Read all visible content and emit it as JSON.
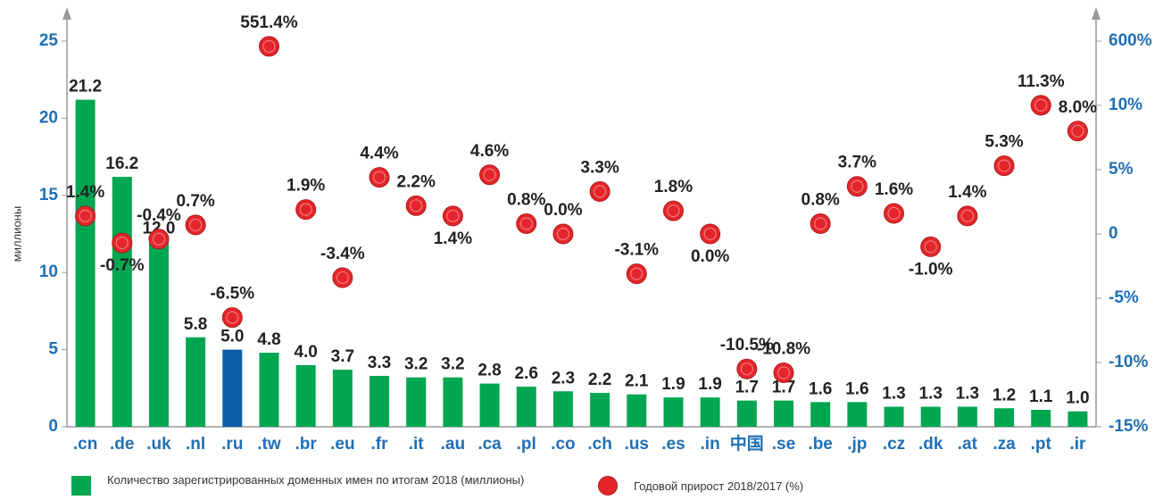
{
  "chart_data": {
    "type": "bar_dot",
    "y_label": "миллионы",
    "categories": [
      ".cn",
      ".de",
      ".uk",
      ".nl",
      ".ru",
      ".tw",
      ".br",
      ".eu",
      ".fr",
      ".it",
      ".au",
      ".ca",
      ".pl",
      ".co",
      ".ch",
      ".us",
      ".es",
      ".in",
      "中国",
      ".se",
      ".be",
      ".jp",
      ".cz",
      ".dk",
      ".at",
      ".za",
      ".pt",
      ".ir"
    ],
    "series": [
      {
        "name": "Количество зарегистрированных доменных имен по итогам 2018 (миллионы)",
        "color": "#00a650",
        "colors": [
          "#00a650",
          "#00a650",
          "#00a650",
          "#00a650",
          "#0b5fa5",
          "#00a650",
          "#00a650",
          "#00a650",
          "#00a650",
          "#00a650",
          "#00a650",
          "#00a650",
          "#00a650",
          "#00a650",
          "#00a650",
          "#00a650",
          "#00a650",
          "#00a650",
          "#00a650",
          "#00a650",
          "#00a650",
          "#00a650",
          "#00a650",
          "#00a650",
          "#00a650",
          "#00a650",
          "#00a650",
          "#00a650"
        ],
        "values": [
          21.2,
          16.2,
          12.0,
          5.8,
          5.0,
          4.8,
          4.0,
          3.7,
          3.3,
          3.2,
          3.2,
          2.8,
          2.6,
          2.3,
          2.2,
          2.1,
          1.9,
          1.9,
          1.7,
          1.7,
          1.6,
          1.6,
          1.3,
          1.3,
          1.3,
          1.2,
          1.1,
          1.0
        ],
        "value_labels": [
          "21.2",
          "16.2",
          "12.0",
          "5.8",
          "5.0",
          "4.8",
          "4.0",
          "3.7",
          "3.3",
          "3.2",
          "3.2",
          "2.8",
          "2.6",
          "2.3",
          "2.2",
          "2.1",
          "1.9",
          "1.9",
          "1.7",
          "1.7",
          "1.6",
          "1.6",
          "1.3",
          "1.3",
          "1.3",
          "1.2",
          "1.1",
          "1.0"
        ]
      },
      {
        "name": "Годовой прирост 2018/2017 (%)",
        "color": "#e4262b",
        "axis": "y2",
        "values": [
          1.4,
          -0.7,
          -0.4,
          0.7,
          -6.5,
          551.4,
          1.9,
          -3.4,
          4.4,
          2.2,
          1.4,
          4.6,
          0.8,
          0.0,
          3.3,
          -3.1,
          1.8,
          0.0,
          -10.5,
          -10.8,
          0.8,
          3.7,
          1.6,
          -1.0,
          1.4,
          5.3,
          11.3,
          8.0
        ],
        "value_labels": [
          "1.4%",
          "-0.7%",
          "-0.4%",
          "0.7%",
          "-6.5%",
          "551.4%",
          "1.9%",
          "-3.4%",
          "4.4%",
          "2.2%",
          "1.4%",
          "4.6%",
          "0.8%",
          "0.0%",
          "3.3%",
          "-3.1%",
          "1.8%",
          "0.0%",
          "-10.5%",
          "-10.8%",
          "0.8%",
          "3.7%",
          "1.6%",
          "-1.0%",
          "1.4%",
          "5.3%",
          "11.3%",
          "8.0%"
        ]
      }
    ],
    "ylim": [
      0,
      25
    ],
    "yticks": [
      0,
      5,
      10,
      15,
      20,
      25
    ],
    "y2lim": [
      -15,
      600
    ],
    "y2ticks": [
      {
        "value": -15,
        "label": "-15%"
      },
      {
        "value": -10,
        "label": "-10%"
      },
      {
        "value": -5,
        "label": "-5%"
      },
      0,
      {
        "value": 5,
        "label": "5%"
      },
      {
        "value": 10,
        "label": "10%"
      },
      {
        "value": 600,
        "label": "600%"
      }
    ]
  }
}
